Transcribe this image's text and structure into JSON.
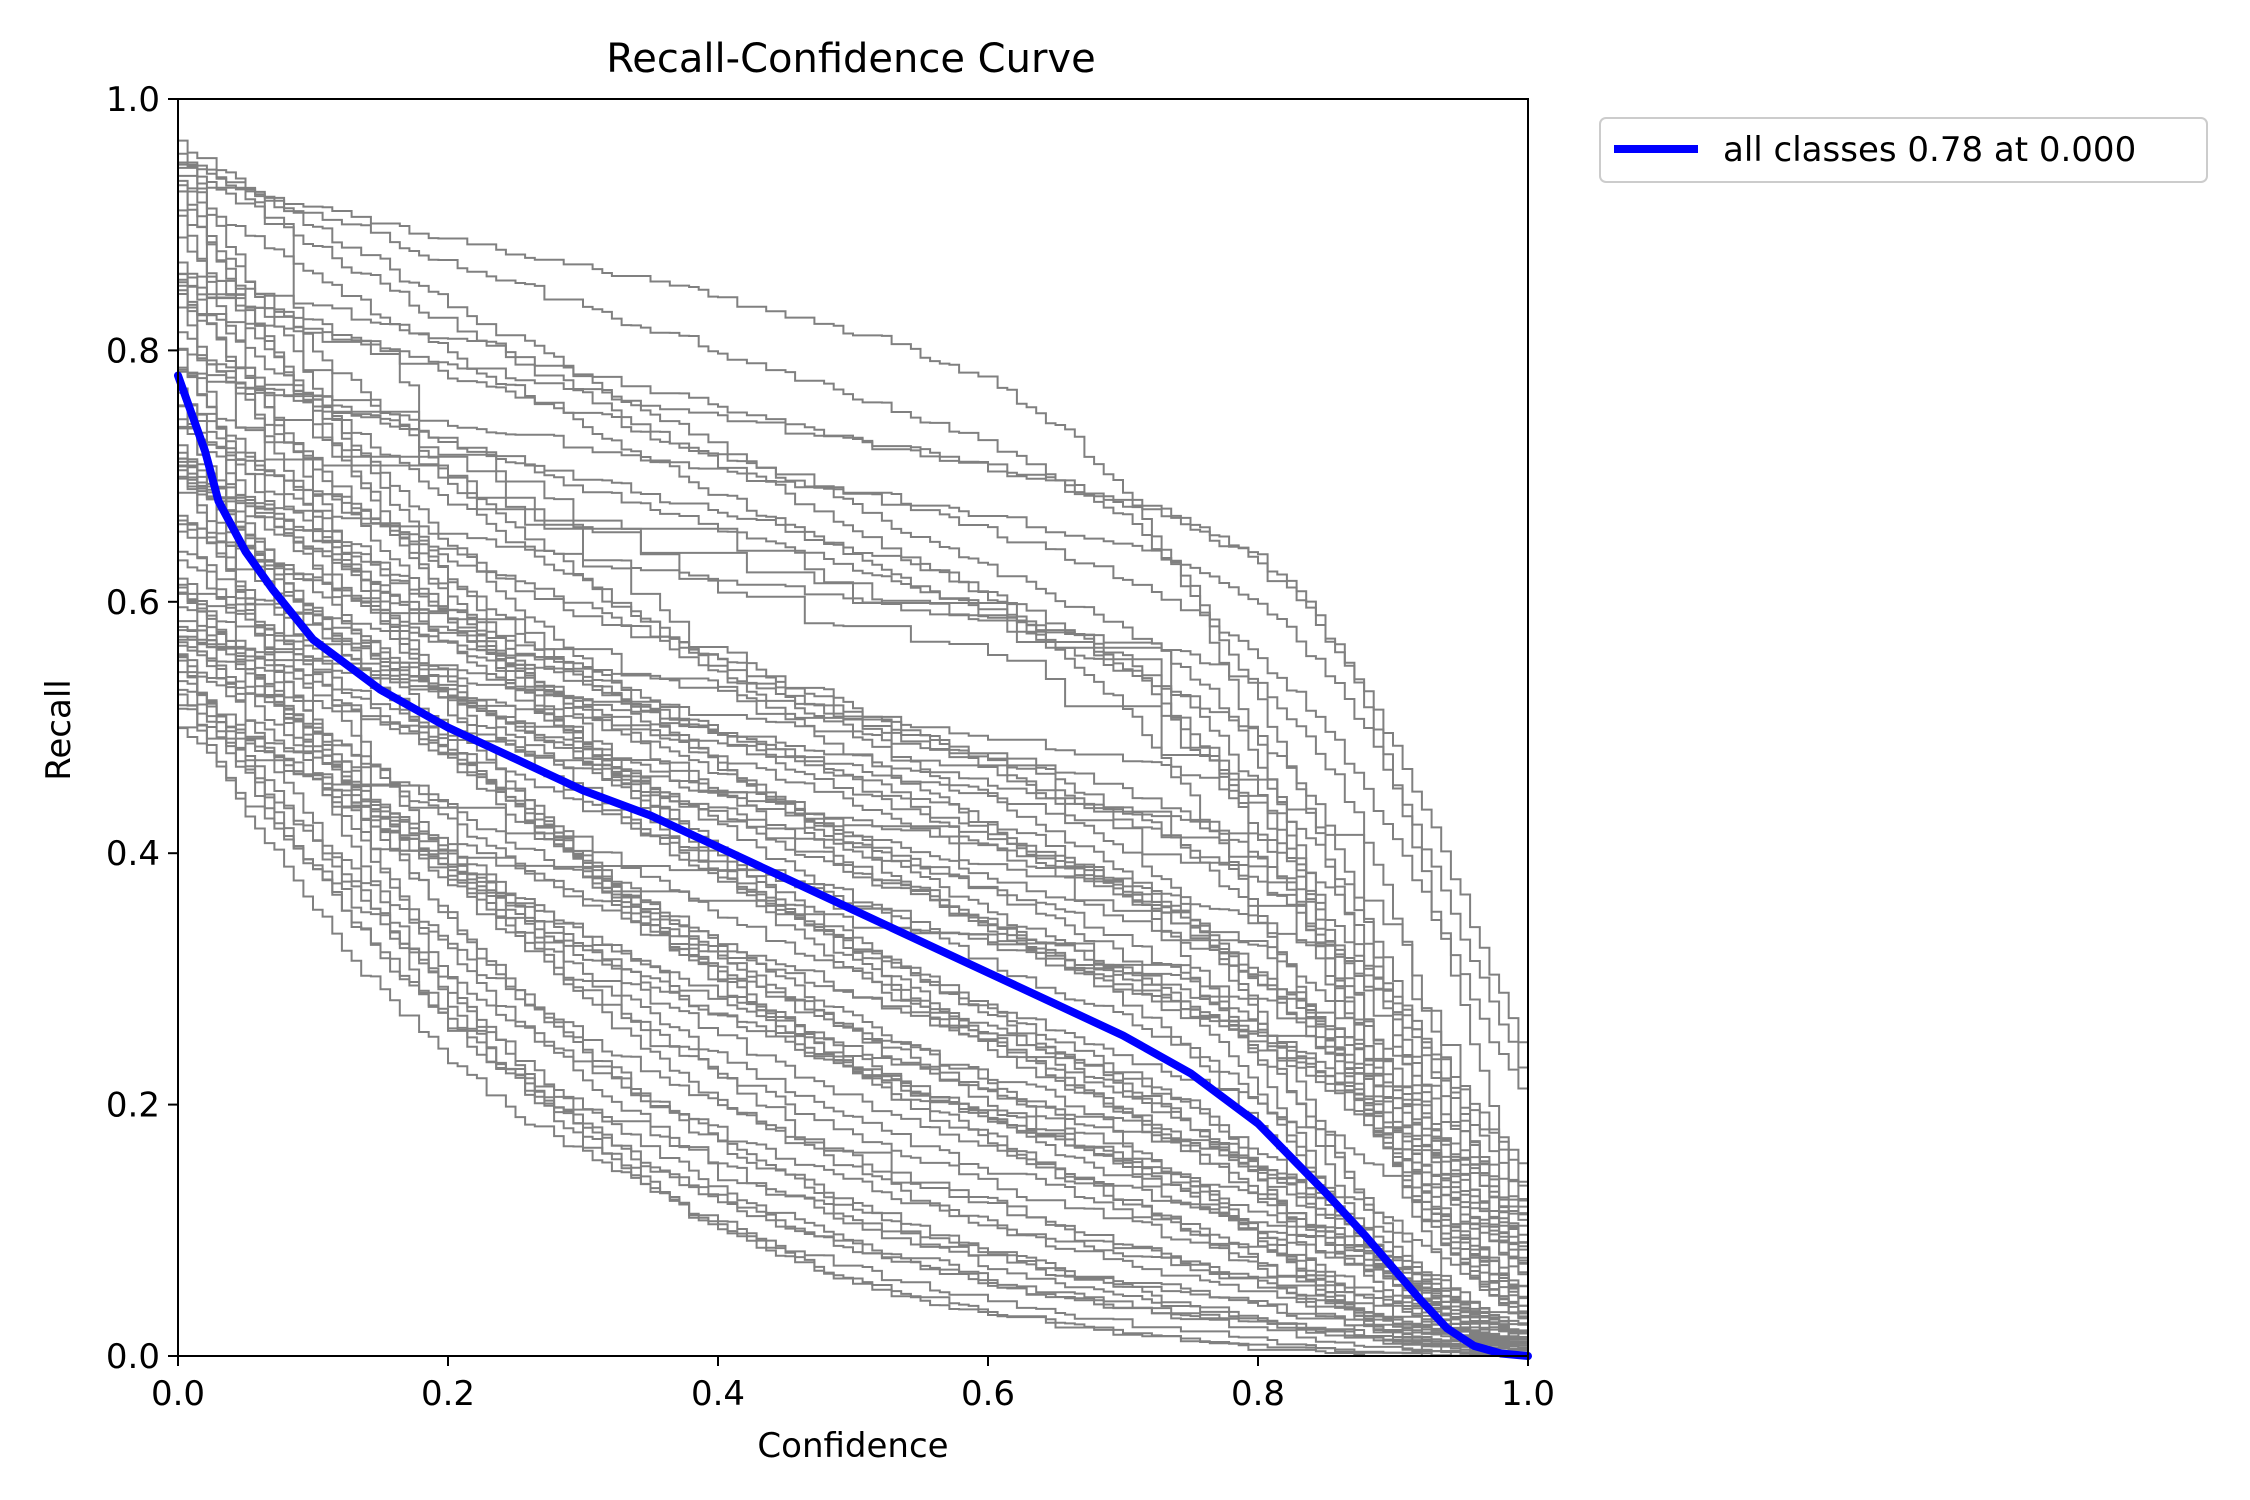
{
  "chart_data": {
    "type": "line",
    "title": "Recall-Confidence Curve",
    "xlabel": "Confidence",
    "ylabel": "Recall",
    "xlim": [
      0,
      1
    ],
    "ylim": [
      0,
      1
    ],
    "x_ticks": [
      "0.0",
      "0.2",
      "0.4",
      "0.6",
      "0.8",
      "1.0"
    ],
    "y_ticks": [
      "0.0",
      "0.2",
      "0.4",
      "0.6",
      "0.8",
      "1.0"
    ],
    "grid": false,
    "legend_position": "outside top-right",
    "legend": [
      "all classes 0.78 at 0.000"
    ],
    "colors": {
      "class_curves": "#808080",
      "all_classes": "#0000ff",
      "axes": "#000000",
      "legend_border": "#cccccc"
    },
    "class_curve_count": 80,
    "all_classes_curve": {
      "name": "all classes 0.78 at 0.000",
      "x": [
        0.0,
        0.01,
        0.02,
        0.03,
        0.05,
        0.07,
        0.1,
        0.15,
        0.2,
        0.25,
        0.3,
        0.35,
        0.4,
        0.45,
        0.5,
        0.55,
        0.6,
        0.65,
        0.7,
        0.75,
        0.8,
        0.85,
        0.88,
        0.9,
        0.92,
        0.94,
        0.96,
        0.98,
        1.0
      ],
      "y": [
        0.78,
        0.75,
        0.72,
        0.68,
        0.64,
        0.61,
        0.57,
        0.53,
        0.5,
        0.475,
        0.45,
        0.43,
        0.405,
        0.38,
        0.355,
        0.33,
        0.305,
        0.28,
        0.255,
        0.225,
        0.185,
        0.13,
        0.095,
        0.07,
        0.045,
        0.022,
        0.008,
        0.002,
        0.0
      ]
    }
  }
}
